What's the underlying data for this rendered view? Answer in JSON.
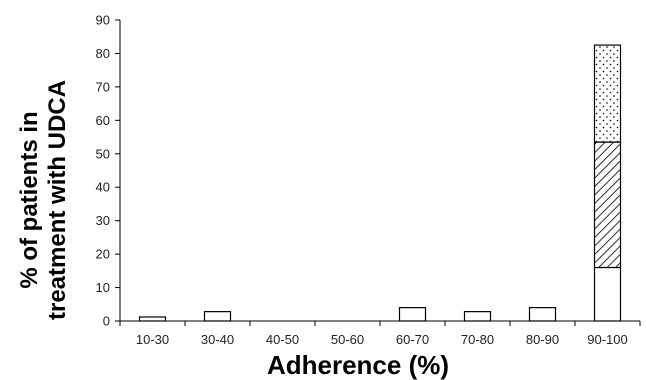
{
  "chart_data": {
    "type": "bar",
    "title": "",
    "xlabel": "Adherence (%)",
    "ylabel_lines": [
      "% of patients in",
      "treatment with UDCA"
    ],
    "ylim": [
      0,
      90
    ],
    "yticks": [
      0,
      10,
      20,
      30,
      40,
      50,
      60,
      70,
      80,
      90
    ],
    "categories": [
      "10-30",
      "30-40",
      "40-50",
      "50-60",
      "60-70",
      "70-80",
      "80-90",
      "90-100"
    ],
    "values": [
      1.2,
      2.8,
      0,
      0,
      4.0,
      2.8,
      4.0,
      82.5
    ],
    "stacked_segments_last_bar": [
      {
        "pattern": "plain",
        "from": 0,
        "to": 16
      },
      {
        "pattern": "hatched",
        "from": 16,
        "to": 53.5
      },
      {
        "pattern": "dotted",
        "from": 53.5,
        "to": 82.5
      }
    ],
    "grid": false,
    "legend": false,
    "colors": {
      "bar_fill": "#ffffff",
      "bar_stroke": "#000000",
      "axis": "#000000",
      "text": "#222222"
    }
  }
}
